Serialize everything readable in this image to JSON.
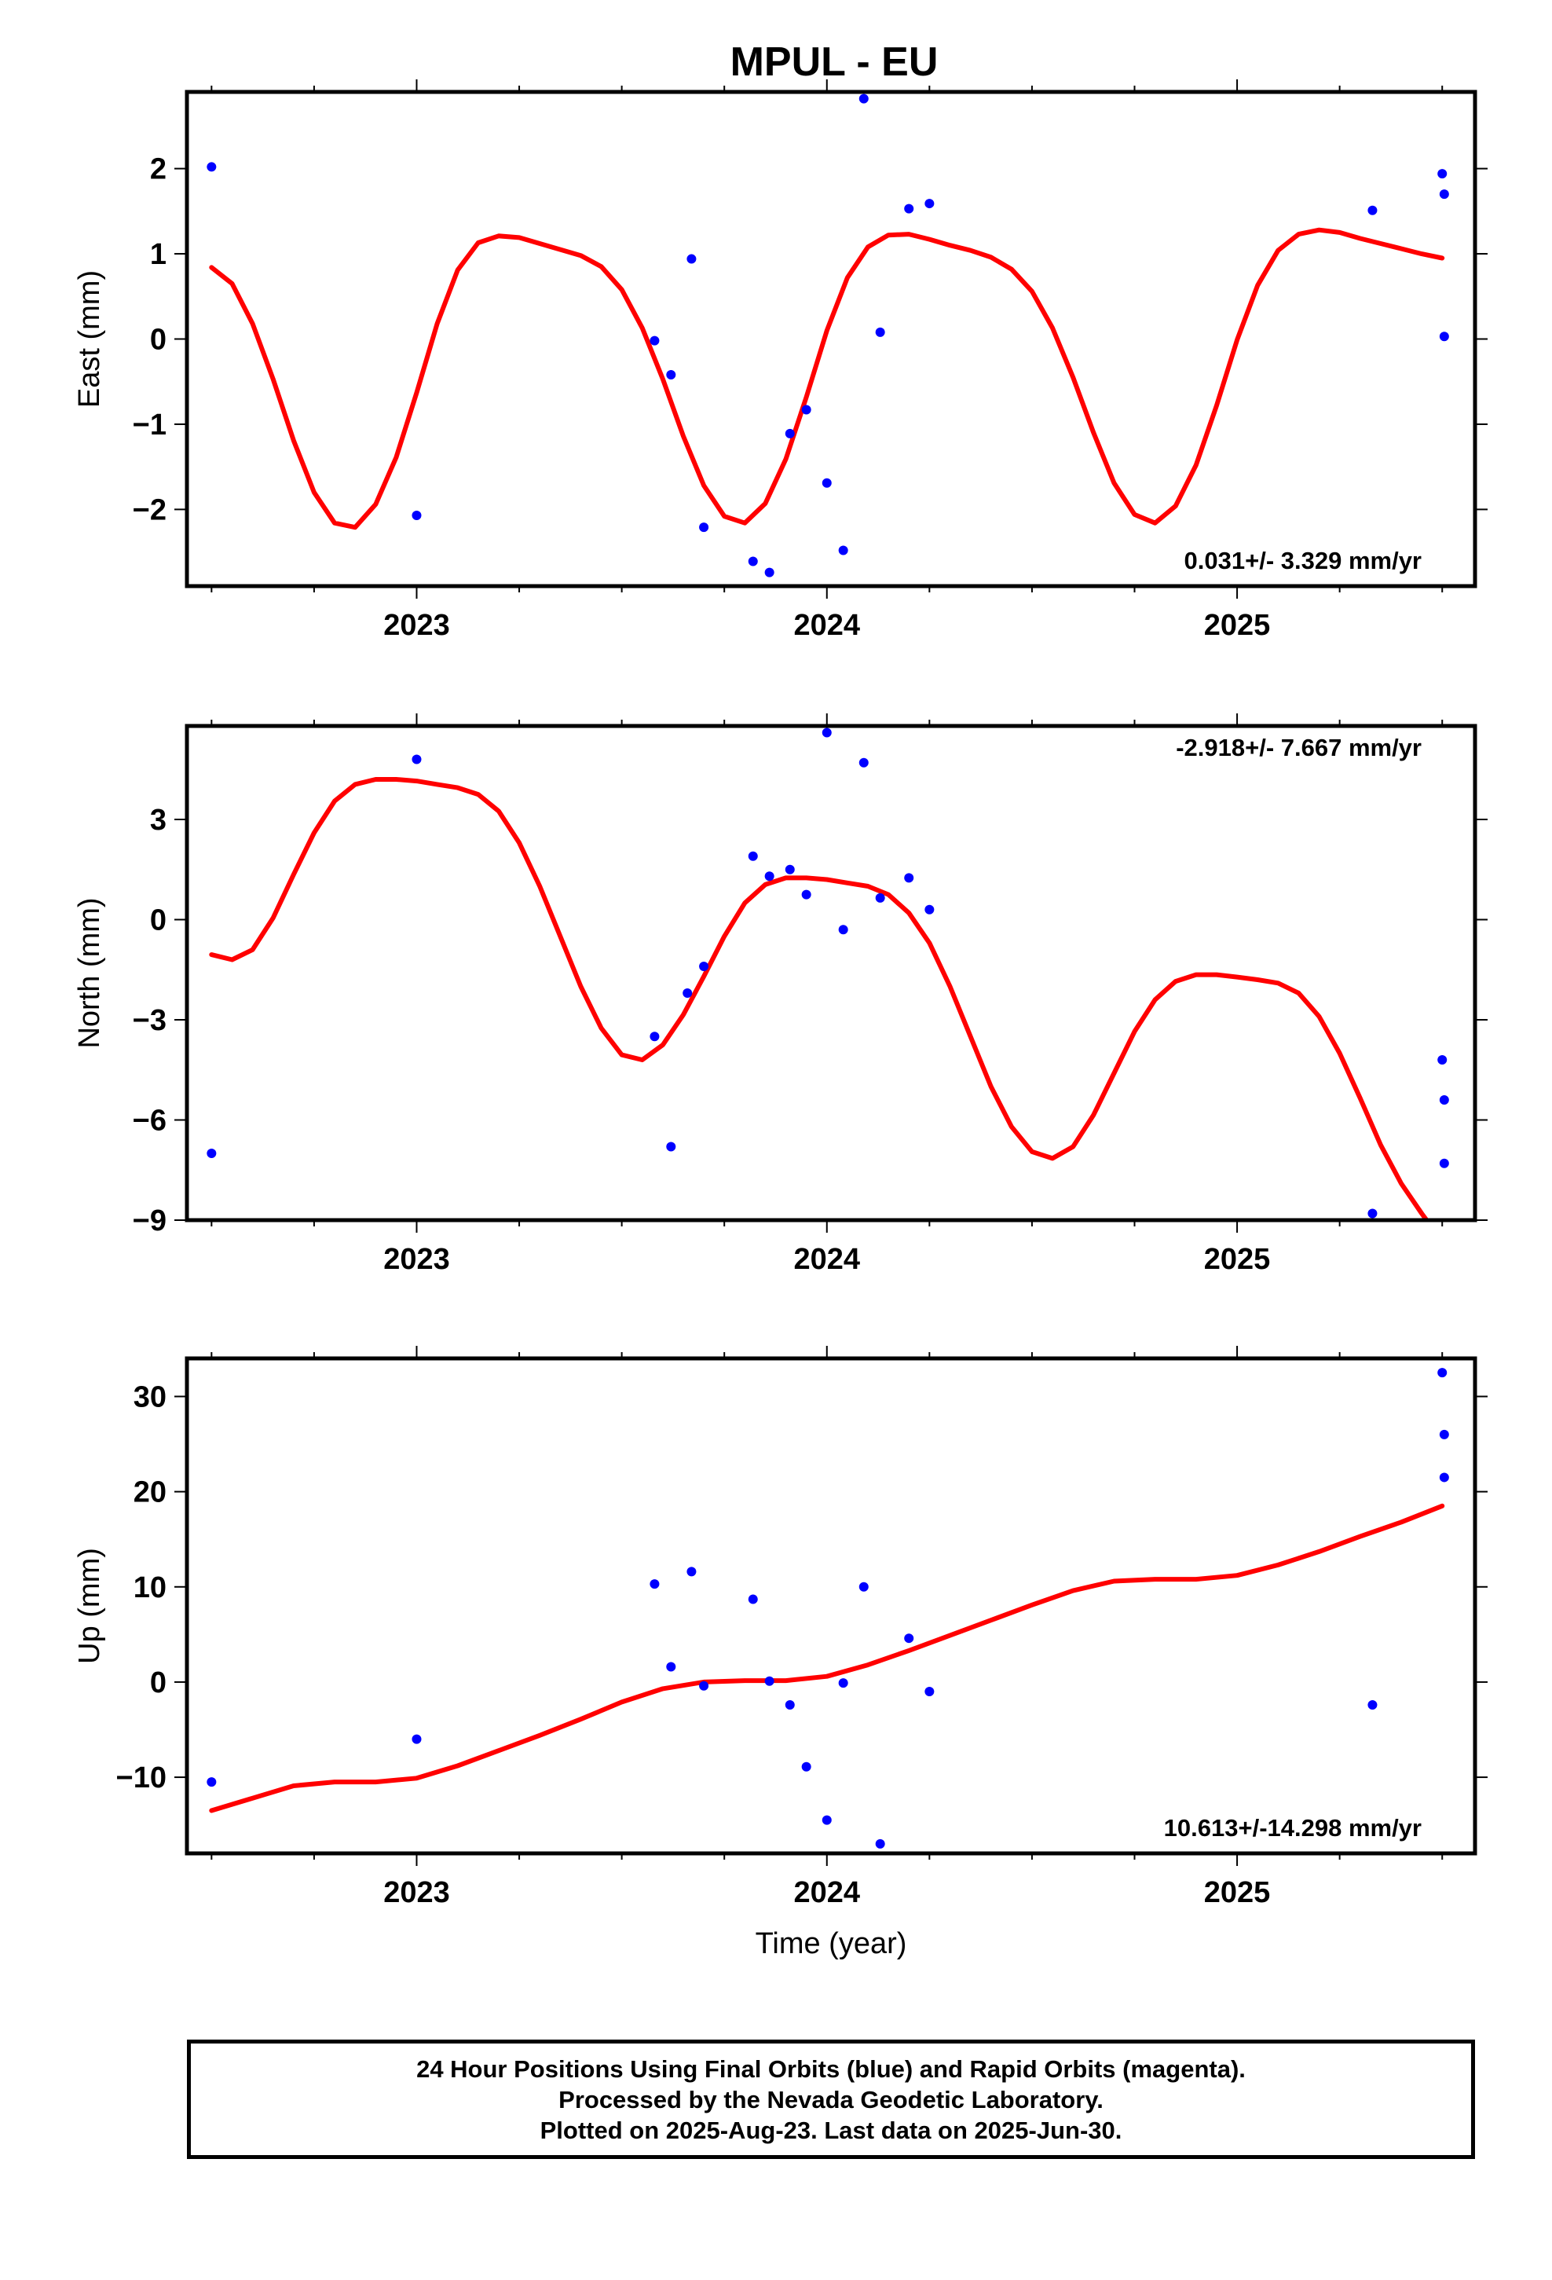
{
  "title": "MPUL - EU",
  "xlabel": "Time (year)",
  "footer": {
    "line1": "24 Hour Positions Using Final Orbits (blue) and Rapid Orbits (magenta).",
    "line2": "Processed by the Nevada Geodetic Laboratory.",
    "line3": "Plotted on 2025-Aug-23. Last data on 2025-Jun-30."
  },
  "colors": {
    "points": "#0000ff",
    "fit": "#ff0000",
    "frame": "#000000"
  },
  "chart_data": [
    {
      "type": "scatter",
      "ylabel": "East (mm)",
      "rate": "0.031+/- 3.329 mm/yr",
      "xlim": [
        2022.44,
        2025.58
      ],
      "ylim": [
        -2.9,
        2.9
      ],
      "xticks": [
        2023,
        2024,
        2025
      ],
      "xtick_labels": [
        "2023",
        "2024",
        "2025"
      ],
      "yticks": [
        -2,
        -1,
        0,
        1,
        2
      ],
      "ytick_labels": [
        "−2",
        "−1",
        "0",
        "1",
        "2"
      ],
      "points": [
        [
          2022.5,
          2.02
        ],
        [
          2023.0,
          -2.07
        ],
        [
          2023.58,
          -0.02
        ],
        [
          2023.62,
          -0.42
        ],
        [
          2023.67,
          0.94
        ],
        [
          2023.7,
          -2.21
        ],
        [
          2023.82,
          -2.61
        ],
        [
          2023.86,
          -2.74
        ],
        [
          2023.91,
          -1.11
        ],
        [
          2023.95,
          -0.83
        ],
        [
          2024.0,
          -1.69
        ],
        [
          2024.04,
          -2.48
        ],
        [
          2024.09,
          2.82
        ],
        [
          2024.13,
          0.08
        ],
        [
          2024.2,
          1.53
        ],
        [
          2024.25,
          1.59
        ],
        [
          2025.33,
          1.51
        ],
        [
          2025.5,
          1.94
        ],
        [
          2025.505,
          1.7
        ],
        [
          2025.505,
          0.03
        ]
      ],
      "fit": [
        [
          2022.5,
          0.84
        ],
        [
          2022.55,
          0.65
        ],
        [
          2022.6,
          0.18
        ],
        [
          2022.65,
          -0.47
        ],
        [
          2022.7,
          -1.19
        ],
        [
          2022.75,
          -1.8
        ],
        [
          2022.8,
          -2.16
        ],
        [
          2022.85,
          -2.21
        ],
        [
          2022.9,
          -1.94
        ],
        [
          2022.95,
          -1.39
        ],
        [
          2023.0,
          -0.63
        ],
        [
          2023.05,
          0.18
        ],
        [
          2023.1,
          0.81
        ],
        [
          2023.15,
          1.13
        ],
        [
          2023.2,
          1.21
        ],
        [
          2023.25,
          1.19
        ],
        [
          2023.3,
          1.12
        ],
        [
          2023.35,
          1.05
        ],
        [
          2023.4,
          0.98
        ],
        [
          2023.45,
          0.85
        ],
        [
          2023.5,
          0.58
        ],
        [
          2023.55,
          0.13
        ],
        [
          2023.6,
          -0.47
        ],
        [
          2023.65,
          -1.14
        ],
        [
          2023.7,
          -1.72
        ],
        [
          2023.75,
          -2.08
        ],
        [
          2023.8,
          -2.16
        ],
        [
          2023.85,
          -1.93
        ],
        [
          2023.9,
          -1.41
        ],
        [
          2023.95,
          -0.68
        ],
        [
          2024.0,
          0.1
        ],
        [
          2024.05,
          0.72
        ],
        [
          2024.1,
          1.08
        ],
        [
          2024.15,
          1.22
        ],
        [
          2024.2,
          1.23
        ],
        [
          2024.25,
          1.17
        ],
        [
          2024.3,
          1.1
        ],
        [
          2024.35,
          1.04
        ],
        [
          2024.4,
          0.96
        ],
        [
          2024.45,
          0.82
        ],
        [
          2024.5,
          0.56
        ],
        [
          2024.55,
          0.13
        ],
        [
          2024.6,
          -0.45
        ],
        [
          2024.65,
          -1.1
        ],
        [
          2024.7,
          -1.69
        ],
        [
          2024.75,
          -2.06
        ],
        [
          2024.8,
          -2.16
        ],
        [
          2024.85,
          -1.96
        ],
        [
          2024.9,
          -1.48
        ],
        [
          2024.95,
          -0.78
        ],
        [
          2025.0,
          -0.01
        ],
        [
          2025.05,
          0.63
        ],
        [
          2025.1,
          1.04
        ],
        [
          2025.15,
          1.23
        ],
        [
          2025.2,
          1.28
        ],
        [
          2025.25,
          1.25
        ],
        [
          2025.3,
          1.18
        ],
        [
          2025.35,
          1.12
        ],
        [
          2025.4,
          1.06
        ],
        [
          2025.45,
          1.0
        ],
        [
          2025.5,
          0.95
        ]
      ]
    },
    {
      "type": "scatter",
      "ylabel": "North (mm)",
      "rate": "-2.918+/- 7.667 mm/yr",
      "xlim": [
        2022.44,
        2025.58
      ],
      "ylim": [
        -9.0,
        5.8
      ],
      "xticks": [
        2023,
        2024,
        2025
      ],
      "xtick_labels": [
        "2023",
        "2024",
        "2025"
      ],
      "yticks": [
        -9,
        -6,
        -3,
        0,
        3
      ],
      "ytick_labels": [
        "−9",
        "−6",
        "−3",
        "0",
        "3"
      ],
      "points": [
        [
          2022.5,
          -7.0
        ],
        [
          2023.0,
          4.8
        ],
        [
          2023.58,
          -3.5
        ],
        [
          2023.62,
          -6.8
        ],
        [
          2023.66,
          -2.2
        ],
        [
          2023.7,
          -1.4
        ],
        [
          2023.82,
          1.9
        ],
        [
          2023.86,
          1.3
        ],
        [
          2023.91,
          1.5
        ],
        [
          2023.95,
          0.75
        ],
        [
          2024.0,
          5.6
        ],
        [
          2024.04,
          -0.3
        ],
        [
          2024.09,
          4.7
        ],
        [
          2024.13,
          0.65
        ],
        [
          2024.2,
          1.25
        ],
        [
          2024.25,
          0.3
        ],
        [
          2025.33,
          -8.8
        ],
        [
          2025.5,
          -4.2
        ],
        [
          2025.505,
          -5.4
        ],
        [
          2025.505,
          -7.3
        ]
      ],
      "fit": [
        [
          2022.5,
          -1.05
        ],
        [
          2022.55,
          -1.2
        ],
        [
          2022.6,
          -0.9
        ],
        [
          2022.65,
          0.05
        ],
        [
          2022.7,
          1.35
        ],
        [
          2022.75,
          2.6
        ],
        [
          2022.8,
          3.55
        ],
        [
          2022.85,
          4.05
        ],
        [
          2022.9,
          4.2
        ],
        [
          2022.95,
          4.2
        ],
        [
          2023.0,
          4.15
        ],
        [
          2023.05,
          4.05
        ],
        [
          2023.1,
          3.95
        ],
        [
          2023.15,
          3.75
        ],
        [
          2023.2,
          3.25
        ],
        [
          2023.25,
          2.3
        ],
        [
          2023.3,
          1.0
        ],
        [
          2023.35,
          -0.5
        ],
        [
          2023.4,
          -2.0
        ],
        [
          2023.45,
          -3.25
        ],
        [
          2023.5,
          -4.05
        ],
        [
          2023.55,
          -4.2
        ],
        [
          2023.6,
          -3.75
        ],
        [
          2023.65,
          -2.85
        ],
        [
          2023.7,
          -1.7
        ],
        [
          2023.75,
          -0.5
        ],
        [
          2023.8,
          0.5
        ],
        [
          2023.85,
          1.05
        ],
        [
          2023.9,
          1.25
        ],
        [
          2023.95,
          1.25
        ],
        [
          2024.0,
          1.2
        ],
        [
          2024.05,
          1.1
        ],
        [
          2024.1,
          1.0
        ],
        [
          2024.15,
          0.75
        ],
        [
          2024.2,
          0.2
        ],
        [
          2024.25,
          -0.7
        ],
        [
          2024.3,
          -2.0
        ],
        [
          2024.35,
          -3.5
        ],
        [
          2024.4,
          -5.0
        ],
        [
          2024.45,
          -6.2
        ],
        [
          2024.5,
          -6.95
        ],
        [
          2024.55,
          -7.15
        ],
        [
          2024.6,
          -6.8
        ],
        [
          2024.65,
          -5.85
        ],
        [
          2024.7,
          -4.6
        ],
        [
          2024.75,
          -3.35
        ],
        [
          2024.8,
          -2.4
        ],
        [
          2024.85,
          -1.85
        ],
        [
          2024.9,
          -1.65
        ],
        [
          2024.95,
          -1.65
        ],
        [
          2025.0,
          -1.72
        ],
        [
          2025.05,
          -1.8
        ],
        [
          2025.1,
          -1.9
        ],
        [
          2025.15,
          -2.2
        ],
        [
          2025.2,
          -2.9
        ],
        [
          2025.25,
          -4.0
        ],
        [
          2025.3,
          -5.35
        ],
        [
          2025.35,
          -6.75
        ],
        [
          2025.4,
          -7.9
        ],
        [
          2025.45,
          -8.8
        ],
        [
          2025.48,
          -9.3
        ]
      ]
    },
    {
      "type": "scatter",
      "ylabel": "Up (mm)",
      "rate": "10.613+/-14.298 mm/yr",
      "xlim": [
        2022.44,
        2025.58
      ],
      "ylim": [
        -18,
        34
      ],
      "xticks": [
        2023,
        2024,
        2025
      ],
      "xtick_labels": [
        "2023",
        "2024",
        "2025"
      ],
      "yticks": [
        -10,
        0,
        10,
        20,
        30
      ],
      "ytick_labels": [
        "−10",
        "0",
        "10",
        "20",
        "30"
      ],
      "points": [
        [
          2022.5,
          -10.5
        ],
        [
          2023.0,
          -6.0
        ],
        [
          2023.58,
          10.3
        ],
        [
          2023.62,
          1.6
        ],
        [
          2023.67,
          11.6
        ],
        [
          2023.7,
          -0.4
        ],
        [
          2023.82,
          8.7
        ],
        [
          2023.86,
          0.1
        ],
        [
          2023.91,
          -2.4
        ],
        [
          2023.95,
          -8.9
        ],
        [
          2024.0,
          -14.5
        ],
        [
          2024.04,
          -0.1
        ],
        [
          2024.09,
          10.0
        ],
        [
          2024.13,
          -17.0
        ],
        [
          2024.2,
          4.6
        ],
        [
          2024.25,
          -1.0
        ],
        [
          2025.33,
          -2.4
        ],
        [
          2025.5,
          32.5
        ],
        [
          2025.505,
          26.0
        ],
        [
          2025.505,
          21.5
        ]
      ],
      "fit": [
        [
          2022.5,
          -13.5
        ],
        [
          2022.6,
          -12.2
        ],
        [
          2022.7,
          -10.9
        ],
        [
          2022.8,
          -10.5
        ],
        [
          2022.9,
          -10.5
        ],
        [
          2023.0,
          -10.1
        ],
        [
          2023.1,
          -8.8
        ],
        [
          2023.2,
          -7.2
        ],
        [
          2023.3,
          -5.6
        ],
        [
          2023.4,
          -3.9
        ],
        [
          2023.5,
          -2.1
        ],
        [
          2023.6,
          -0.7
        ],
        [
          2023.7,
          0.0
        ],
        [
          2023.8,
          0.15
        ],
        [
          2023.9,
          0.15
        ],
        [
          2024.0,
          0.6
        ],
        [
          2024.1,
          1.8
        ],
        [
          2024.2,
          3.3
        ],
        [
          2024.3,
          4.9
        ],
        [
          2024.4,
          6.5
        ],
        [
          2024.5,
          8.1
        ],
        [
          2024.6,
          9.6
        ],
        [
          2024.7,
          10.6
        ],
        [
          2024.8,
          10.8
        ],
        [
          2024.9,
          10.8
        ],
        [
          2025.0,
          11.2
        ],
        [
          2025.1,
          12.3
        ],
        [
          2025.2,
          13.7
        ],
        [
          2025.3,
          15.3
        ],
        [
          2025.4,
          16.8
        ],
        [
          2025.5,
          18.5
        ]
      ]
    }
  ]
}
